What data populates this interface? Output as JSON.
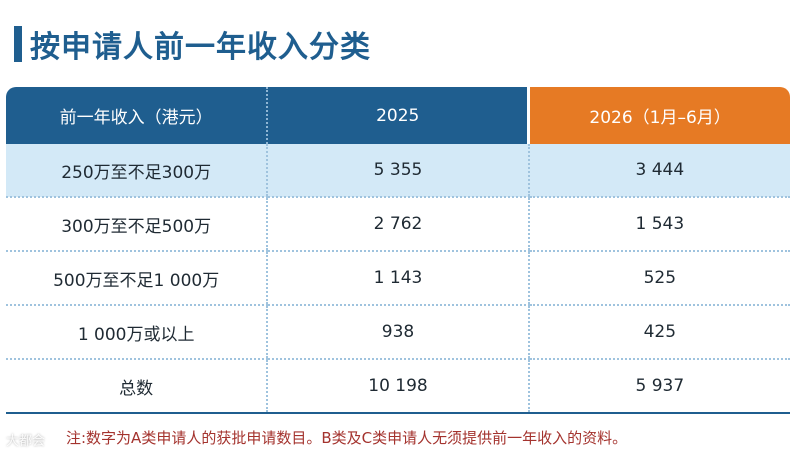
{
  "title": "按申请人前一年收入分类",
  "table": {
    "headers": [
      "前一年收入（港元）",
      "2025",
      "2026（1月–6月）"
    ],
    "rows": [
      [
        "250万至不足300万",
        "5 355",
        "3 444"
      ],
      [
        "300万至不足500万",
        "2 762",
        "1 543"
      ],
      [
        "500万至不足1 000万",
        "1 143",
        "525"
      ],
      [
        "1 000万或以上",
        "938",
        "425"
      ],
      [
        "总数",
        "10 198",
        "5 937"
      ]
    ]
  },
  "note": "注:数字为A类申请人的获批申请数目。B类及C类申请人无须提供前一年收入的资料。",
  "watermark": "大都会"
}
